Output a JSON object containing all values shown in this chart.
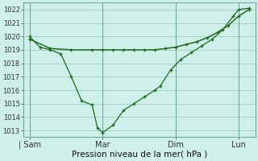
{
  "title": "",
  "xlabel": "Pression niveau de la mer( hPa )",
  "ylabel": "",
  "bg_color": "#cff0ea",
  "line_color": "#1a6b1a",
  "grid_color": "#a8cfc8",
  "ylim": [
    1012.5,
    1022.5
  ],
  "yticks": [
    1013,
    1014,
    1015,
    1016,
    1017,
    1018,
    1019,
    1020,
    1021,
    1022
  ],
  "xtick_labels": [
    "| Sam",
    "Mar",
    "Dim",
    "Lun"
  ],
  "xtick_positions": [
    0,
    3.5,
    7,
    10
  ],
  "series1_x": [
    0,
    0.5,
    1,
    1.5,
    2,
    2.5,
    3,
    3.25,
    3.5,
    4,
    4.5,
    5,
    5.5,
    6,
    6.25,
    6.75,
    7.25,
    7.75,
    8.25,
    8.75,
    9.25,
    9.75,
    10,
    10.5
  ],
  "series1_y": [
    1020.0,
    1019.2,
    1019.0,
    1018.7,
    1017.0,
    1015.2,
    1014.9,
    1013.2,
    1012.85,
    1013.4,
    1014.5,
    1015.0,
    1015.5,
    1016.0,
    1016.3,
    1017.5,
    1018.3,
    1018.8,
    1019.3,
    1019.8,
    1020.5,
    1021.5,
    1022.0,
    1022.1
  ],
  "series2_x": [
    0,
    1,
    2,
    3,
    3.5,
    4,
    4.5,
    5,
    5.5,
    6,
    6.5,
    7,
    7.5,
    8,
    8.5,
    9,
    9.5,
    10,
    10.5
  ],
  "series2_y": [
    1019.8,
    1019.1,
    1019.0,
    1019.0,
    1019.0,
    1019.0,
    1019.0,
    1019.0,
    1019.0,
    1019.0,
    1019.1,
    1019.2,
    1019.4,
    1019.6,
    1019.9,
    1020.3,
    1020.8,
    1021.5,
    1022.0
  ],
  "vlines_x": [
    0,
    3.5,
    7,
    10
  ],
  "vline_color": "#6aaa9a",
  "xlim": [
    -0.3,
    10.8
  ]
}
